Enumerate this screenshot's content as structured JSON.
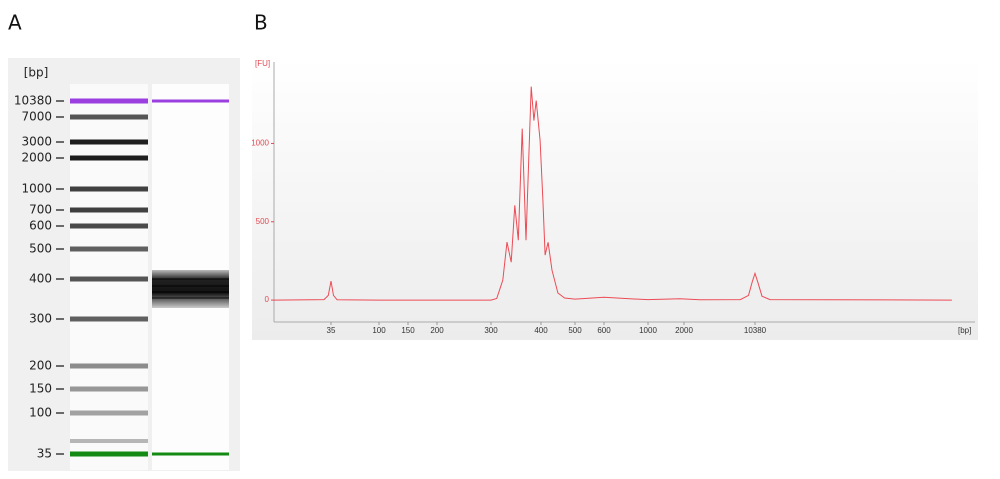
{
  "chart_data": [
    {
      "type": "gel",
      "panel_label": "A",
      "y_label": "[bp]",
      "yticks": [
        10380,
        7000,
        3000,
        2000,
        1000,
        700,
        600,
        500,
        400,
        300,
        200,
        150,
        100,
        35
      ],
      "color": "#1e1e1e",
      "marker_colors": [
        "#9b3fe0",
        "#138a13"
      ]
    },
    {
      "type": "line",
      "panel_label": "B",
      "y_label": "[FU]",
      "x_label": "[bp]",
      "x": [
        10,
        30,
        33,
        35,
        37,
        40,
        100,
        300,
        310,
        321,
        329,
        337,
        344,
        351,
        359,
        367,
        378,
        384,
        389,
        398,
        405,
        411,
        419,
        430,
        447,
        467,
        500,
        519,
        600,
        810,
        1000,
        1852,
        2897,
        7400,
        8920,
        9770,
        10380,
        11120,
        12200,
        14700,
        1000000
      ],
      "series": [
        {
          "color": "#ec4b55",
          "values": [
            0,
            3,
            30,
            121,
            30,
            2,
            0,
            0,
            10,
            127,
            370,
            242,
            605,
            382,
            1095,
            382,
            1363,
            1146,
            1274,
            1019,
            637,
            287,
            369,
            191,
            45,
            13,
            6,
            8,
            18,
            8,
            3,
            8,
            2,
            3,
            30,
            120,
            170,
            110,
            25,
            3,
            0
          ]
        }
      ],
      "xlim": [
        10,
        1000000
      ],
      "ylim": [
        -140,
        1520
      ],
      "xticks": [
        35,
        100,
        150,
        200,
        300,
        400,
        500,
        600,
        1000,
        2000,
        10380
      ],
      "yticks": [
        0,
        500,
        1000
      ]
    }
  ]
}
